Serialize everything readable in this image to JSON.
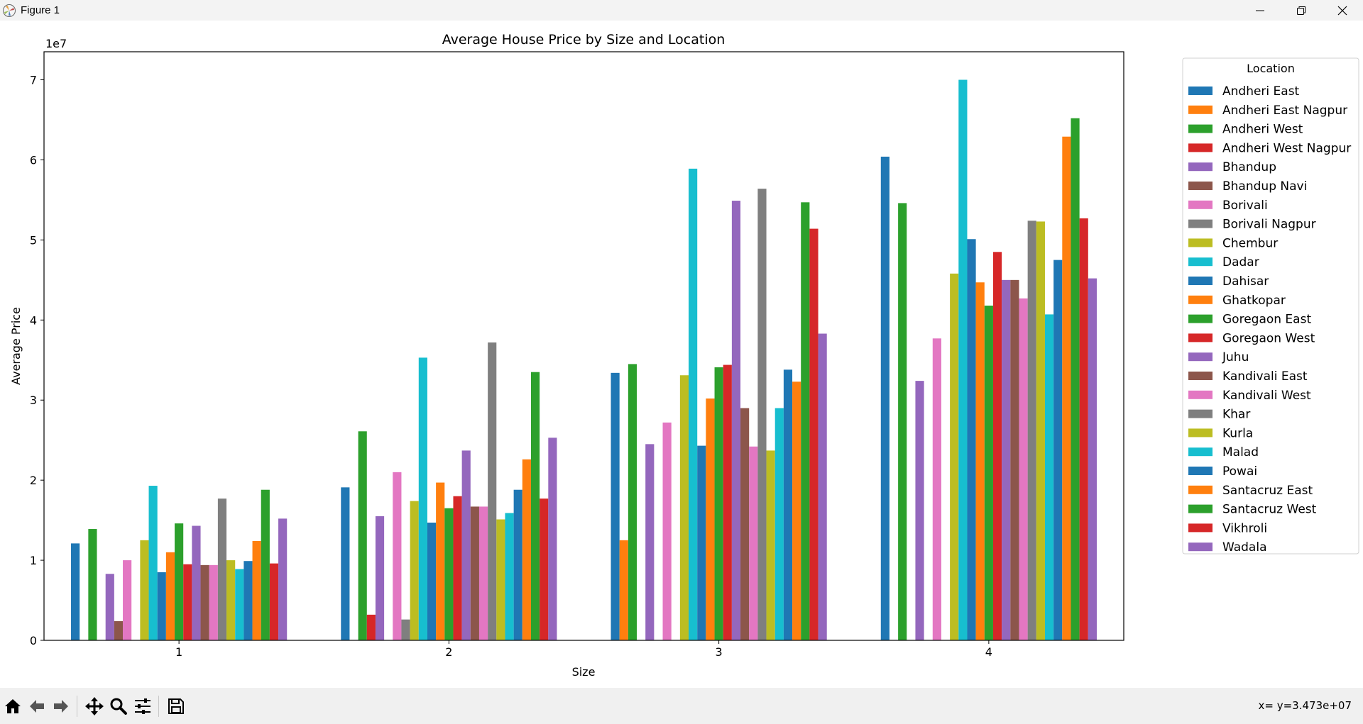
{
  "window": {
    "title": "Figure 1"
  },
  "status": {
    "coords": "x= y=3.473e+07"
  },
  "toolbar": {
    "buttons": [
      "home-icon",
      "back-icon",
      "forward-icon",
      "pan-icon",
      "zoom-icon",
      "configure-icon",
      "save-icon"
    ]
  },
  "colors": {
    "palette": [
      "#1f77b4",
      "#ff7f0e",
      "#2ca02c",
      "#d62728",
      "#9467bd",
      "#8c564b",
      "#e377c2",
      "#7f7f7f",
      "#bcbd22",
      "#17becf"
    ]
  },
  "chart_data": {
    "type": "bar",
    "title": "Average House Price by Size and Location",
    "xlabel": "Size",
    "ylabel": "Average Price",
    "y_offset_text": "1e7",
    "ylim": [
      0,
      7.35
    ],
    "yticks": [
      0,
      1,
      2,
      3,
      4,
      5,
      6,
      7
    ],
    "grid": false,
    "legend_title": "Location",
    "legend_position": "outside-right",
    "categories": [
      "1",
      "2",
      "3",
      "4"
    ],
    "series": [
      {
        "name": "Andheri East",
        "values": [
          1.21,
          1.91,
          3.34,
          6.04
        ]
      },
      {
        "name": "Andheri East Nagpur",
        "values": [
          0,
          0,
          1.25,
          0
        ]
      },
      {
        "name": "Andheri West",
        "values": [
          1.39,
          2.61,
          3.45,
          5.46
        ]
      },
      {
        "name": "Andheri West Nagpur",
        "values": [
          0,
          0.32,
          0,
          0
        ]
      },
      {
        "name": "Bhandup",
        "values": [
          0.83,
          1.55,
          2.45,
          3.24
        ]
      },
      {
        "name": "Bhandup Navi",
        "values": [
          0.24,
          0,
          0,
          0
        ]
      },
      {
        "name": "Borivali",
        "values": [
          1.0,
          2.1,
          2.72,
          3.77
        ]
      },
      {
        "name": "Borivali Nagpur",
        "values": [
          0,
          0.26,
          0,
          0
        ]
      },
      {
        "name": "Chembur",
        "values": [
          1.25,
          1.74,
          3.31,
          4.58
        ]
      },
      {
        "name": "Dadar",
        "values": [
          1.93,
          3.53,
          5.89,
          7.0
        ]
      },
      {
        "name": "Dahisar",
        "values": [
          0.85,
          1.47,
          2.43,
          5.01
        ]
      },
      {
        "name": "Ghatkopar",
        "values": [
          1.1,
          1.97,
          3.02,
          4.47
        ]
      },
      {
        "name": "Goregaon East",
        "values": [
          1.46,
          1.65,
          3.41,
          4.18
        ]
      },
      {
        "name": "Goregaon West",
        "values": [
          0.95,
          1.8,
          3.44,
          4.85
        ]
      },
      {
        "name": "Juhu",
        "values": [
          1.43,
          2.37,
          5.49,
          4.5
        ]
      },
      {
        "name": "Kandivali East",
        "values": [
          0.94,
          1.67,
          2.9,
          4.5
        ]
      },
      {
        "name": "Kandivali West",
        "values": [
          0.94,
          1.67,
          2.42,
          4.27
        ]
      },
      {
        "name": "Khar",
        "values": [
          1.77,
          3.72,
          5.64,
          5.24
        ]
      },
      {
        "name": "Kurla",
        "values": [
          1.0,
          1.51,
          2.37,
          5.23
        ]
      },
      {
        "name": "Malad",
        "values": [
          0.89,
          1.59,
          2.9,
          4.07
        ]
      },
      {
        "name": "Powai",
        "values": [
          0.99,
          1.88,
          3.38,
          4.75
        ]
      },
      {
        "name": "Santacruz East",
        "values": [
          1.24,
          2.26,
          3.23,
          6.29
        ]
      },
      {
        "name": "Santacruz West",
        "values": [
          1.88,
          3.35,
          5.47,
          6.52
        ]
      },
      {
        "name": "Vikhroli",
        "values": [
          0.96,
          1.77,
          5.14,
          5.27
        ]
      },
      {
        "name": "Wadala",
        "values": [
          1.52,
          2.53,
          3.83,
          4.52
        ]
      }
    ]
  }
}
